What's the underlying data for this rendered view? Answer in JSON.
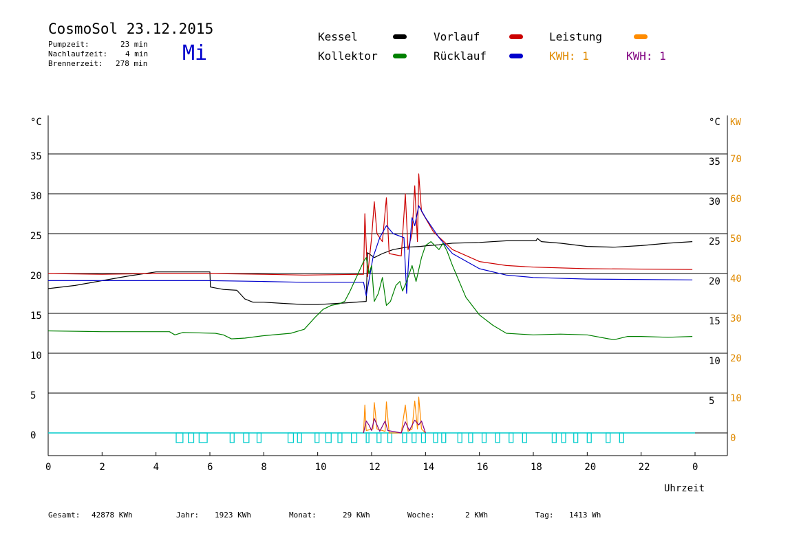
{
  "header": {
    "title": "CosmoSol 23.12.2015",
    "weekday": "Mi",
    "info": [
      {
        "label": "Pumpzeit:",
        "value": "23 min"
      },
      {
        "label": "Nachlaufzeit:",
        "value": "4 min"
      },
      {
        "label": "Brennerzeit:",
        "value": "278 min"
      }
    ]
  },
  "legend": {
    "kessel": "Kessel",
    "kollektor": "Kollektor",
    "vorlauf": "Vorlauf",
    "ruecklauf": "Rücklauf",
    "leistung": "Leistung",
    "kwh_orange": "KWH: 1",
    "kwh_purple": "KWH: 1"
  },
  "colors": {
    "kessel": "#000000",
    "kollektor": "#008000",
    "vorlauf": "#cc0000",
    "ruecklauf": "#0000cc",
    "leistung": "#ff8c00",
    "kwh_purple": "#800080",
    "pump": "#00cccc",
    "weekday": "#0000cc"
  },
  "footer": [
    {
      "label": "Gesamt:",
      "value": "42878 KWh"
    },
    {
      "label": "Jahr:",
      "value": "1923 KWh"
    },
    {
      "label": "Monat:",
      "value": "29 KWh"
    },
    {
      "label": "Woche:",
      "value": "2 KWh"
    },
    {
      "label": "Tag:",
      "value": "1413 Wh"
    }
  ],
  "chart_data": {
    "type": "line",
    "xlabel": "Uhrzeit",
    "ylabel_left": "°C",
    "ylabel_right": "°C",
    "ylabel_right_kw": "KW",
    "xlim": [
      0,
      24
    ],
    "ylim": [
      -2.5,
      40
    ],
    "yticks_left": [
      0,
      5,
      10,
      15,
      20,
      25,
      30,
      35
    ],
    "yticks_right": [
      5,
      10,
      15,
      20,
      25,
      30,
      35
    ],
    "yticks_kw": [
      0,
      10,
      20,
      30,
      40,
      50,
      60,
      70
    ],
    "xtick_labels": [
      "0",
      "2",
      "4",
      "6",
      "8",
      "10",
      "12",
      "14",
      "16",
      "18",
      "20",
      "22",
      "0"
    ],
    "series": [
      {
        "name": "Kessel",
        "key": "kessel",
        "points": [
          [
            0,
            18.1
          ],
          [
            1,
            18.5
          ],
          [
            2,
            19.1
          ],
          [
            3,
            19.7
          ],
          [
            4,
            20.2
          ],
          [
            6,
            20.2
          ],
          [
            6.02,
            18.3
          ],
          [
            6.5,
            18.0
          ],
          [
            7,
            17.9
          ],
          [
            7.3,
            16.8
          ],
          [
            7.6,
            16.4
          ],
          [
            8,
            16.4
          ],
          [
            9,
            16.2
          ],
          [
            9.5,
            16.1
          ],
          [
            10,
            16.1
          ],
          [
            11,
            16.3
          ],
          [
            11.8,
            16.5
          ],
          [
            11.85,
            22.6
          ],
          [
            12.1,
            22.0
          ],
          [
            12.4,
            22.5
          ],
          [
            12.8,
            23.0
          ],
          [
            13.3,
            23.3
          ],
          [
            13.8,
            23.4
          ],
          [
            14.1,
            23.5
          ],
          [
            14.5,
            23.6
          ],
          [
            15,
            23.8
          ],
          [
            16,
            23.9
          ],
          [
            17,
            24.1
          ],
          [
            18.1,
            24.1
          ],
          [
            18.15,
            24.4
          ],
          [
            18.3,
            24.0
          ],
          [
            19,
            23.8
          ],
          [
            20,
            23.4
          ],
          [
            21,
            23.3
          ],
          [
            22,
            23.5
          ],
          [
            23,
            23.8
          ],
          [
            23.9,
            24.0
          ]
        ]
      },
      {
        "name": "Vorlauf",
        "key": "vorlauf",
        "points": [
          [
            0,
            20.0
          ],
          [
            2,
            19.9
          ],
          [
            4,
            20.0
          ],
          [
            6,
            20.0
          ],
          [
            8,
            19.9
          ],
          [
            9.5,
            19.8
          ],
          [
            11.7,
            19.9
          ],
          [
            11.75,
            27.5
          ],
          [
            11.85,
            19.6
          ],
          [
            12.0,
            24.5
          ],
          [
            12.1,
            29.0
          ],
          [
            12.2,
            25.0
          ],
          [
            12.4,
            24.0
          ],
          [
            12.55,
            29.5
          ],
          [
            12.65,
            22.5
          ],
          [
            13.1,
            22.2
          ],
          [
            13.25,
            30.0
          ],
          [
            13.35,
            23.0
          ],
          [
            13.5,
            25.0
          ],
          [
            13.6,
            31.0
          ],
          [
            13.7,
            24.0
          ],
          [
            13.75,
            32.5
          ],
          [
            13.85,
            27.8
          ],
          [
            14.3,
            25.2
          ],
          [
            15,
            23.0
          ],
          [
            16,
            21.5
          ],
          [
            17,
            21.0
          ],
          [
            18,
            20.8
          ],
          [
            20,
            20.6
          ],
          [
            23.9,
            20.5
          ]
        ]
      },
      {
        "name": "Rücklauf",
        "key": "ruecklauf",
        "points": [
          [
            0,
            19.1
          ],
          [
            6,
            19.1
          ],
          [
            8,
            19.0
          ],
          [
            9.5,
            18.9
          ],
          [
            11.7,
            18.9
          ],
          [
            11.8,
            17.2
          ],
          [
            12.05,
            22.0
          ],
          [
            12.3,
            24.5
          ],
          [
            12.55,
            26.0
          ],
          [
            12.8,
            25.0
          ],
          [
            13.2,
            24.5
          ],
          [
            13.3,
            17.5
          ],
          [
            13.4,
            23.0
          ],
          [
            13.5,
            27.0
          ],
          [
            13.6,
            26.0
          ],
          [
            13.75,
            28.5
          ],
          [
            14.0,
            27.0
          ],
          [
            14.5,
            24.5
          ],
          [
            15,
            22.5
          ],
          [
            16,
            20.6
          ],
          [
            17,
            19.8
          ],
          [
            18,
            19.5
          ],
          [
            20,
            19.3
          ],
          [
            23.9,
            19.2
          ]
        ]
      },
      {
        "name": "Kollektor",
        "key": "kollektor",
        "points": [
          [
            0,
            12.8
          ],
          [
            2,
            12.7
          ],
          [
            4.5,
            12.7
          ],
          [
            4.7,
            12.3
          ],
          [
            5,
            12.6
          ],
          [
            6.2,
            12.5
          ],
          [
            6.5,
            12.3
          ],
          [
            6.8,
            11.8
          ],
          [
            7.3,
            11.9
          ],
          [
            8,
            12.2
          ],
          [
            9,
            12.5
          ],
          [
            9.5,
            13.0
          ],
          [
            9.9,
            14.5
          ],
          [
            10.2,
            15.5
          ],
          [
            10.5,
            16.0
          ],
          [
            10.8,
            16.2
          ],
          [
            11,
            16.5
          ],
          [
            11.2,
            17.8
          ],
          [
            11.5,
            20.0
          ],
          [
            11.7,
            21.5
          ],
          [
            11.8,
            22.0
          ],
          [
            11.9,
            20.0
          ],
          [
            12.0,
            21.0
          ],
          [
            12.1,
            16.5
          ],
          [
            12.25,
            17.5
          ],
          [
            12.4,
            19.5
          ],
          [
            12.55,
            16.0
          ],
          [
            12.7,
            16.5
          ],
          [
            12.9,
            18.5
          ],
          [
            13.05,
            19.0
          ],
          [
            13.15,
            17.8
          ],
          [
            13.3,
            19.0
          ],
          [
            13.5,
            21.0
          ],
          [
            13.65,
            19.0
          ],
          [
            13.85,
            22.0
          ],
          [
            14.0,
            23.5
          ],
          [
            14.2,
            24.0
          ],
          [
            14.5,
            23.0
          ],
          [
            14.65,
            23.8
          ],
          [
            14.8,
            22.8
          ],
          [
            15.0,
            21.0
          ],
          [
            15.5,
            17.0
          ],
          [
            16,
            14.8
          ],
          [
            16.5,
            13.5
          ],
          [
            17,
            12.5
          ],
          [
            17.5,
            12.4
          ],
          [
            18,
            12.3
          ],
          [
            19,
            12.4
          ],
          [
            20,
            12.3
          ],
          [
            20.8,
            11.8
          ],
          [
            21,
            11.7
          ],
          [
            21.5,
            12.1
          ],
          [
            22,
            12.1
          ],
          [
            23,
            12.0
          ],
          [
            23.9,
            12.1
          ]
        ]
      },
      {
        "name": "Leistung",
        "key": "leistung",
        "points": [
          [
            11.7,
            0
          ],
          [
            11.75,
            3.5
          ],
          [
            11.8,
            0.3
          ],
          [
            12.05,
            0.5
          ],
          [
            12.1,
            3.8
          ],
          [
            12.2,
            0.5
          ],
          [
            12.5,
            0.2
          ],
          [
            12.55,
            3.9
          ],
          [
            12.65,
            0
          ],
          [
            13.1,
            0
          ],
          [
            13.25,
            3.5
          ],
          [
            13.35,
            0.2
          ],
          [
            13.5,
            0.5
          ],
          [
            13.6,
            4.0
          ],
          [
            13.7,
            0.5
          ],
          [
            13.75,
            4.5
          ],
          [
            13.85,
            0.5
          ],
          [
            14.0,
            0
          ]
        ]
      },
      {
        "name": "KWH",
        "key": "kwh_purple",
        "points": [
          [
            11.7,
            0
          ],
          [
            11.8,
            1.5
          ],
          [
            11.9,
            1.0
          ],
          [
            12.0,
            0.3
          ],
          [
            12.1,
            1.8
          ],
          [
            12.3,
            0.2
          ],
          [
            12.5,
            1.5
          ],
          [
            12.6,
            0.3
          ],
          [
            13.1,
            0
          ],
          [
            13.25,
            1.4
          ],
          [
            13.4,
            0.3
          ],
          [
            13.6,
            1.6
          ],
          [
            13.75,
            1.0
          ],
          [
            13.85,
            1.5
          ],
          [
            14.0,
            0
          ]
        ]
      }
    ],
    "pump_on": [
      [
        4.75,
        5.0
      ],
      [
        5.2,
        5.4
      ],
      [
        5.6,
        5.9
      ],
      [
        6.75,
        6.9
      ],
      [
        7.25,
        7.45
      ],
      [
        7.75,
        7.9
      ],
      [
        8.9,
        9.1
      ],
      [
        9.25,
        9.4
      ],
      [
        9.9,
        10.05
      ],
      [
        10.3,
        10.5
      ],
      [
        10.75,
        10.9
      ],
      [
        11.25,
        11.45
      ],
      [
        11.8,
        11.9
      ],
      [
        12.2,
        12.35
      ],
      [
        12.6,
        12.75
      ],
      [
        13.15,
        13.3
      ],
      [
        13.5,
        13.65
      ],
      [
        13.85,
        14.0
      ],
      [
        14.3,
        14.45
      ],
      [
        14.6,
        14.75
      ],
      [
        15.2,
        15.35
      ],
      [
        15.6,
        15.75
      ],
      [
        16.1,
        16.25
      ],
      [
        16.6,
        16.75
      ],
      [
        17.1,
        17.25
      ],
      [
        17.6,
        17.75
      ],
      [
        18.7,
        18.85
      ],
      [
        19.05,
        19.2
      ],
      [
        19.5,
        19.65
      ],
      [
        20.0,
        20.15
      ],
      [
        20.7,
        20.85
      ],
      [
        21.2,
        21.35
      ]
    ]
  }
}
